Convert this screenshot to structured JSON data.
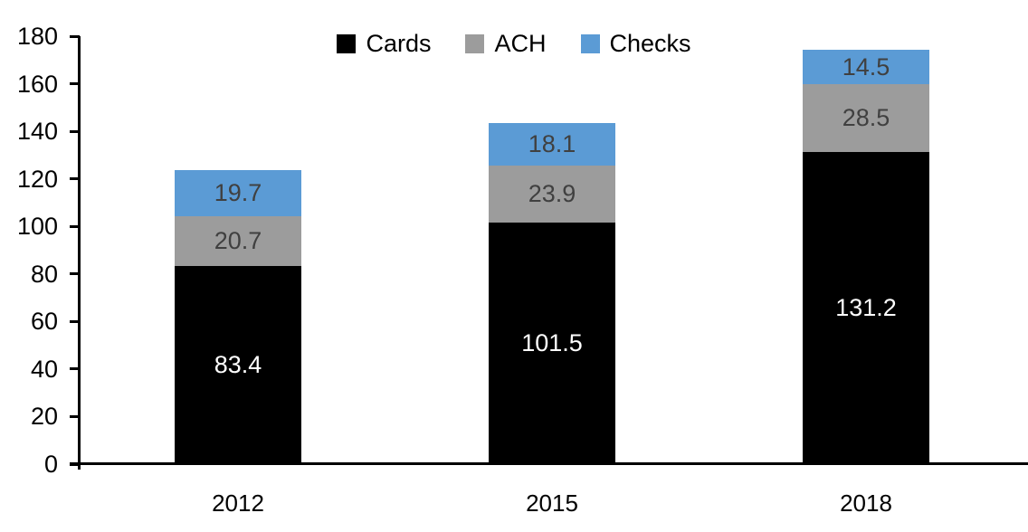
{
  "chart_data": {
    "type": "bar",
    "stacked": true,
    "title": "",
    "xlabel": "",
    "ylabel": "",
    "categories": [
      "2012",
      "2015",
      "2018"
    ],
    "series": [
      {
        "name": "Cards",
        "color": "#000000",
        "label_color": "#ffffff",
        "values": [
          83.4,
          101.5,
          131.2
        ]
      },
      {
        "name": "ACH",
        "color": "#9c9c9c",
        "label_color": "#404040",
        "values": [
          20.7,
          23.9,
          28.5
        ]
      },
      {
        "name": "Checks",
        "color": "#5b9bd5",
        "label_color": "#404040",
        "values": [
          19.7,
          18.1,
          14.5
        ]
      }
    ],
    "yticks": [
      0,
      20,
      40,
      60,
      80,
      100,
      120,
      140,
      160,
      180
    ],
    "ylim": [
      0,
      180
    ],
    "legend_position": "top",
    "legend_labels": [
      "Cards",
      "ACH",
      "Checks"
    ],
    "grid": false,
    "axis_color": "#000000",
    "background_color": "#ffffff"
  }
}
